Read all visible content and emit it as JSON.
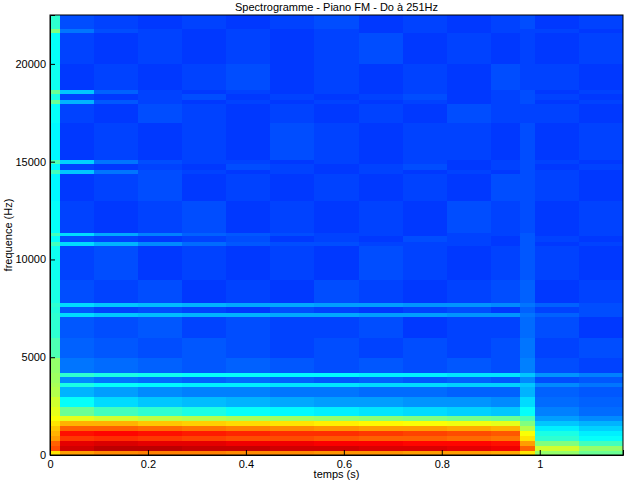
{
  "chart_data": {
    "type": "heatmap",
    "title": "Spectrogramme - Piano FM - Do à 251Hz",
    "xlabel": "temps (s)",
    "ylabel": "frequence (Hz)",
    "xlim": [
      0,
      1.17
    ],
    "ylim": [
      0,
      22500
    ],
    "xticks": [
      0,
      0.2,
      0.4,
      0.6,
      0.8,
      1
    ],
    "yticks": [
      0,
      5000,
      10000,
      15000,
      20000
    ],
    "zlim": [
      -100,
      0
    ],
    "x": [
      0,
      0.02,
      0.09,
      0.18,
      0.27,
      0.36,
      0.45,
      0.54,
      0.63,
      0.72,
      0.81,
      0.9,
      0.96,
      0.99,
      1.08,
      1.17
    ],
    "y": [
      0,
      250,
      500,
      750,
      1000,
      1250,
      1500,
      1750,
      2000,
      2500,
      3000,
      3500,
      3700,
      4000,
      4200,
      5000,
      6000,
      7100,
      7300,
      7600,
      7800,
      9000,
      10700,
      10900,
      11200,
      11400,
      13000,
      14400,
      14600,
      14900,
      15100,
      17000,
      18000,
      18200,
      18500,
      18700,
      20000,
      21600,
      21800,
      22500
    ],
    "cells": [
      [
        -35,
        -28,
        -26,
        -25,
        -25,
        -26,
        -26,
        -27,
        -27,
        -28,
        -28,
        -29,
        -35,
        -48,
        -52
      ],
      [
        -20,
        -8,
        -6,
        -6,
        -7,
        -7,
        -8,
        -8,
        -9,
        -9,
        -10,
        -11,
        -22,
        -42,
        -48
      ],
      [
        -22,
        -10,
        -9,
        -10,
        -10,
        -11,
        -11,
        -12,
        -12,
        -13,
        -13,
        -14,
        -28,
        -50,
        -56
      ],
      [
        -28,
        -18,
        -17,
        -18,
        -19,
        -20,
        -20,
        -21,
        -22,
        -22,
        -23,
        -24,
        -35,
        -58,
        -62
      ],
      [
        -30,
        -14,
        -13,
        -14,
        -15,
        -16,
        -17,
        -17,
        -18,
        -19,
        -20,
        -21,
        -38,
        -60,
        -64
      ],
      [
        -32,
        -22,
        -22,
        -23,
        -24,
        -25,
        -26,
        -27,
        -28,
        -28,
        -29,
        -30,
        -45,
        -64,
        -67
      ],
      [
        -35,
        -30,
        -30,
        -32,
        -33,
        -34,
        -35,
        -36,
        -37,
        -38,
        -39,
        -40,
        -50,
        -68,
        -70
      ],
      [
        -38,
        -40,
        -42,
        -44,
        -45,
        -46,
        -47,
        -48,
        -49,
        -50,
        -51,
        -52,
        -55,
        -72,
        -74
      ],
      [
        -40,
        -52,
        -56,
        -58,
        -60,
        -62,
        -63,
        -64,
        -65,
        -66,
        -67,
        -68,
        -62,
        -75,
        -77
      ],
      [
        -42,
        -62,
        -66,
        -68,
        -69,
        -70,
        -71,
        -72,
        -72,
        -73,
        -73,
        -74,
        -66,
        -77,
        -78
      ],
      [
        -45,
        -70,
        -72,
        -74,
        -75,
        -75,
        -76,
        -76,
        -77,
        -77,
        -78,
        -78,
        -70,
        -78,
        -79
      ],
      [
        -46,
        -60,
        -62,
        -63,
        -64,
        -64,
        -65,
        -65,
        -66,
        -66,
        -67,
        -67,
        -68,
        -74,
        -76
      ],
      [
        -47,
        -74,
        -76,
        -77,
        -78,
        -77,
        -78,
        -79,
        -78,
        -79,
        -78,
        -79,
        -74,
        -80,
        -79
      ],
      [
        -47,
        -58,
        -60,
        -61,
        -62,
        -62,
        -63,
        -63,
        -64,
        -64,
        -65,
        -65,
        -68,
        -73,
        -75
      ],
      [
        -48,
        -76,
        -77,
        -78,
        -79,
        -78,
        -79,
        -80,
        -79,
        -80,
        -79,
        -80,
        -75,
        -80,
        -81
      ],
      [
        -55,
        -78,
        -79,
        -80,
        -79,
        -80,
        -81,
        -80,
        -81,
        -80,
        -81,
        -80,
        -76,
        -81,
        -80
      ],
      [
        -58,
        -79,
        -80,
        -79,
        -81,
        -80,
        -81,
        -81,
        -80,
        -82,
        -81,
        -81,
        -77,
        -80,
        -82
      ],
      [
        -58,
        -66,
        -68,
        -69,
        -70,
        -70,
        -71,
        -71,
        -72,
        -72,
        -73,
        -73,
        -76,
        -78,
        -80
      ],
      [
        -59,
        -79,
        -81,
        -80,
        -81,
        -82,
        -80,
        -81,
        -82,
        -81,
        -80,
        -82,
        -78,
        -81,
        -80
      ],
      [
        -58,
        -66,
        -68,
        -69,
        -70,
        -71,
        -71,
        -72,
        -72,
        -73,
        -73,
        -74,
        -76,
        -78,
        -80
      ],
      [
        -60,
        -80,
        -81,
        -80,
        -82,
        -81,
        -82,
        -80,
        -81,
        -82,
        -81,
        -80,
        -78,
        -82,
        -81
      ],
      [
        -61,
        -81,
        -80,
        -82,
        -81,
        -82,
        -81,
        -82,
        -80,
        -81,
        -82,
        -81,
        -79,
        -81,
        -82
      ],
      [
        -56,
        -66,
        -70,
        -74,
        -77,
        -79,
        -80,
        -80,
        -81,
        -81,
        -81,
        -82,
        -79,
        -82,
        -81
      ],
      [
        -62,
        -80,
        -81,
        -82,
        -81,
        -80,
        -82,
        -81,
        -82,
        -80,
        -81,
        -82,
        -79,
        -81,
        -82
      ],
      [
        -56,
        -66,
        -71,
        -75,
        -78,
        -79,
        -80,
        -81,
        -81,
        -82,
        -81,
        -81,
        -79,
        -82,
        -81
      ],
      [
        -62,
        -81,
        -82,
        -81,
        -80,
        -82,
        -81,
        -82,
        -81,
        -82,
        -80,
        -81,
        -80,
        -82,
        -81
      ],
      [
        -63,
        -82,
        -81,
        -80,
        -82,
        -81,
        -82,
        -81,
        -82,
        -81,
        -82,
        -80,
        -80,
        -81,
        -82
      ],
      [
        -56,
        -68,
        -76,
        -80,
        -81,
        -82,
        -81,
        -82,
        -81,
        -82,
        -81,
        -82,
        -80,
        -81,
        -82
      ],
      [
        -63,
        -81,
        -82,
        -81,
        -82,
        -80,
        -81,
        -82,
        -81,
        -80,
        -82,
        -81,
        -80,
        -82,
        -81
      ],
      [
        -55,
        -67,
        -76,
        -80,
        -81,
        -81,
        -82,
        -81,
        -82,
        -81,
        -82,
        -81,
        -80,
        -81,
        -82
      ],
      [
        -63,
        -82,
        -81,
        -82,
        -81,
        -82,
        -80,
        -81,
        -82,
        -81,
        -81,
        -82,
        -80,
        -82,
        -81
      ],
      [
        -62,
        -81,
        -82,
        -80,
        -81,
        -82,
        -81,
        -82,
        -81,
        -82,
        -80,
        -81,
        -81,
        -81,
        -82
      ],
      [
        -52,
        -70,
        -79,
        -81,
        -82,
        -81,
        -82,
        -81,
        -82,
        -81,
        -82,
        -81,
        -80,
        -82,
        -81
      ],
      [
        -60,
        -81,
        -82,
        -81,
        -80,
        -82,
        -81,
        -82,
        -81,
        -80,
        -82,
        -81,
        -80,
        -81,
        -82
      ],
      [
        -52,
        -68,
        -78,
        -81,
        -82,
        -81,
        -82,
        -81,
        -82,
        -81,
        -82,
        -81,
        -80,
        -82,
        -81
      ],
      [
        -61,
        -82,
        -81,
        -82,
        -81,
        -80,
        -82,
        -81,
        -82,
        -81,
        -82,
        -80,
        -81,
        -81,
        -82
      ],
      [
        -62,
        -81,
        -82,
        -81,
        -82,
        -81,
        -82,
        -81,
        -80,
        -82,
        -81,
        -82,
        -81,
        -82,
        -81
      ],
      [
        -50,
        -76,
        -80,
        -81,
        -82,
        -81,
        -82,
        -81,
        -82,
        -81,
        -82,
        -81,
        -81,
        -81,
        -82
      ],
      [
        -58,
        -80,
        -81,
        -82,
        -81,
        -82,
        -81,
        -80,
        -82,
        -81,
        -82,
        -81,
        -80,
        -82,
        -81
      ]
    ]
  }
}
